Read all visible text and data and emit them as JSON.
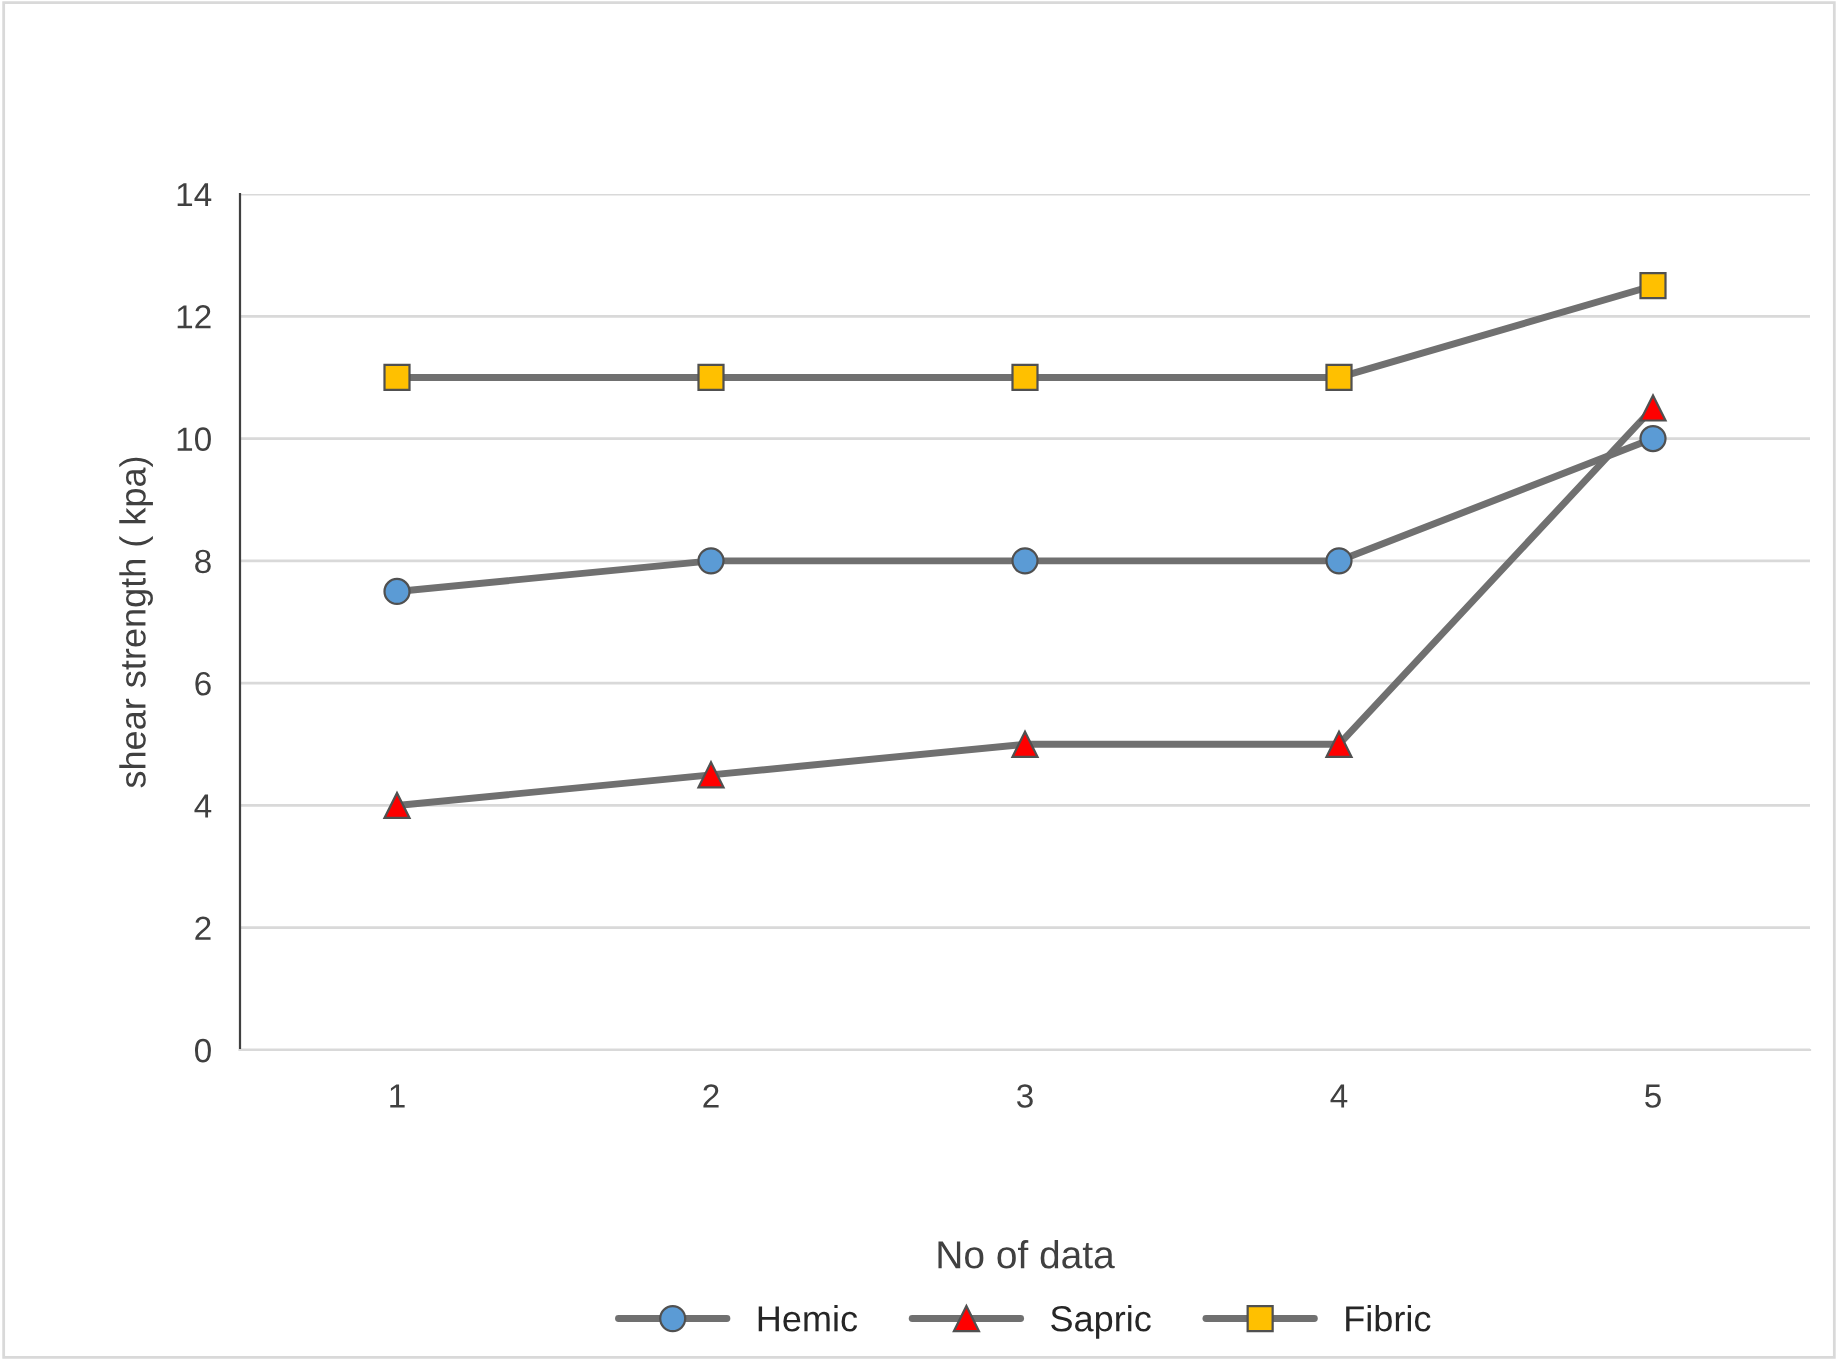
{
  "chart_data": {
    "type": "line",
    "xlabel": "No of data",
    "ylabel": "shear strength ( kpa)",
    "categories": [
      "1",
      "2",
      "3",
      "4",
      "5"
    ],
    "series": [
      {
        "name": "Hemic",
        "color": "#5b9bd5",
        "marker": "circle",
        "values": [
          7.5,
          8,
          8,
          8,
          10
        ]
      },
      {
        "name": "Sapric",
        "color": "#ff0000",
        "marker": "triangle",
        "values": [
          4,
          4.5,
          5,
          5,
          10.5
        ]
      },
      {
        "name": "Fibric",
        "color": "#ffc000",
        "marker": "square",
        "values": [
          11,
          11,
          11,
          11,
          12.5
        ]
      }
    ],
    "ylim": [
      0,
      14
    ],
    "yticks": [
      0,
      2,
      4,
      6,
      8,
      10,
      12,
      14
    ],
    "grid": "y",
    "legend": "bottom",
    "line_style": "solid"
  }
}
